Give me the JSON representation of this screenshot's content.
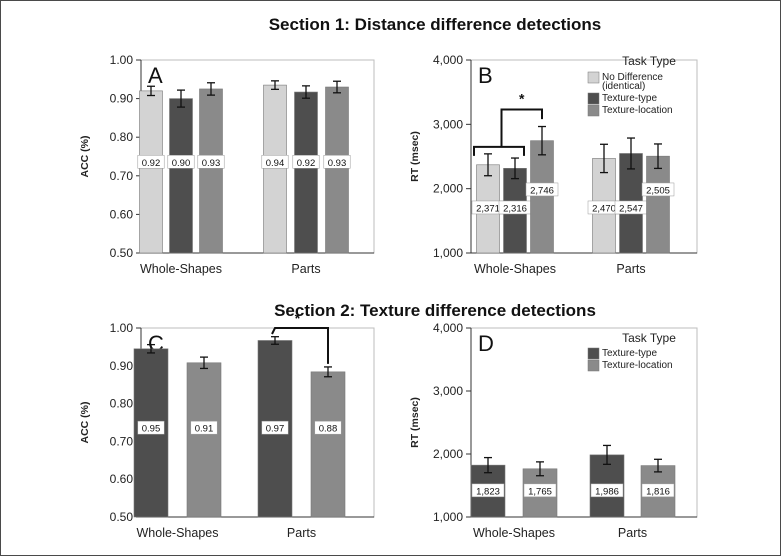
{
  "section_titles": {
    "section1": "Section 1: Distance difference detections",
    "section2": "Section 2: Texture difference detections"
  },
  "colors": {
    "no_difference": "#d3d3d3",
    "texture_type": "#4e4e4e",
    "texture_location": "#8a8a8a",
    "plot_border": "#bdbdbd",
    "axis": "#333333"
  },
  "chart_data": [
    {
      "id": "A",
      "type": "bar",
      "panel_label": "A",
      "ylabel": "ACC (%)",
      "ylim": [
        0.5,
        1.0
      ],
      "yticks": [
        "0.50",
        "0.60",
        "0.70",
        "0.80",
        "0.90",
        "1.00"
      ],
      "ytick_values": [
        0.5,
        0.6,
        0.7,
        0.8,
        0.9,
        1.0
      ],
      "categories": [
        "Whole-Shapes",
        "Parts"
      ],
      "series": [
        {
          "name": "No Difference (identical)",
          "color_key": "no_difference",
          "values": [
            0.92,
            0.935
          ],
          "err": [
            0.012,
            0.011
          ],
          "labels": [
            "0.92",
            "0.94"
          ]
        },
        {
          "name": "Texture-type",
          "color_key": "texture_type",
          "values": [
            0.9,
            0.917
          ],
          "err": [
            0.022,
            0.016
          ],
          "labels": [
            "0.90",
            "0.92"
          ]
        },
        {
          "name": "Texture-location",
          "color_key": "texture_location",
          "values": [
            0.925,
            0.93
          ],
          "err": [
            0.016,
            0.015
          ],
          "labels": [
            "0.93",
            "0.93"
          ]
        }
      ],
      "label_value": 0.735
    },
    {
      "id": "B",
      "type": "bar",
      "panel_label": "B",
      "ylabel": "RT (msec)",
      "ylim": [
        1000,
        4000
      ],
      "yticks": [
        "1,000",
        "2,000",
        "3,000",
        "4,000"
      ],
      "ytick_values": [
        1000,
        2000,
        3000,
        4000
      ],
      "categories": [
        "Whole-Shapes",
        "Parts"
      ],
      "legend_title": "Task Type",
      "legend": [
        {
          "line1": "No Difference",
          "line2": "(identical)",
          "color_key": "no_difference"
        },
        {
          "line1": "Texture-type",
          "line2": "",
          "color_key": "texture_type"
        },
        {
          "line1": "Texture-location",
          "line2": "",
          "color_key": "texture_location"
        }
      ],
      "series": [
        {
          "name": "No Difference (identical)",
          "color_key": "no_difference",
          "values": [
            2371,
            2470
          ],
          "err": [
            170,
            220
          ],
          "labels": [
            "2,371",
            "2,470"
          ]
        },
        {
          "name": "Texture-type",
          "color_key": "texture_type",
          "values": [
            2316,
            2547
          ],
          "err": [
            160,
            240
          ],
          "labels": [
            "2,316",
            "2,547"
          ]
        },
        {
          "name": "Texture-location",
          "color_key": "texture_location",
          "values": [
            2746,
            2505
          ],
          "err": [
            220,
            190
          ],
          "labels": [
            "2,746",
            "2,505"
          ]
        }
      ],
      "label_values": [
        1700,
        1700,
        1980
      ],
      "significance": "*"
    },
    {
      "id": "C",
      "type": "bar",
      "panel_label": "C",
      "ylabel": "ACC (%)",
      "ylim": [
        0.5,
        1.0
      ],
      "yticks": [
        "0.50",
        "0.60",
        "0.70",
        "0.80",
        "0.90",
        "1.00"
      ],
      "ytick_values": [
        0.5,
        0.6,
        0.7,
        0.8,
        0.9,
        1.0
      ],
      "categories": [
        "Whole-Shapes",
        "Parts"
      ],
      "series": [
        {
          "name": "Texture-type",
          "color_key": "texture_type",
          "values": [
            0.945,
            0.967
          ],
          "err": [
            0.011,
            0.01
          ],
          "labels": [
            "0.95",
            "0.97"
          ]
        },
        {
          "name": "Texture-location",
          "color_key": "texture_location",
          "values": [
            0.908,
            0.884
          ],
          "err": [
            0.015,
            0.013
          ],
          "labels": [
            "0.91",
            "0.88"
          ]
        }
      ],
      "label_value": 0.735,
      "significance": "*"
    },
    {
      "id": "D",
      "type": "bar",
      "panel_label": "D",
      "ylabel": "RT (msec)",
      "ylim": [
        1000,
        4000
      ],
      "yticks": [
        "1,000",
        "2,000",
        "3,000",
        "4,000"
      ],
      "ytick_values": [
        1000,
        2000,
        3000,
        4000
      ],
      "categories": [
        "Whole-Shapes",
        "Parts"
      ],
      "legend_title": "Task Type",
      "legend": [
        {
          "line1": "Texture-type",
          "line2": "",
          "color_key": "texture_type"
        },
        {
          "line1": "Texture-location",
          "line2": "",
          "color_key": "texture_location"
        }
      ],
      "series": [
        {
          "name": "Texture-type",
          "color_key": "texture_type",
          "values": [
            1823,
            1986
          ],
          "err": [
            120,
            150
          ],
          "labels": [
            "1,823",
            "1,986"
          ]
        },
        {
          "name": "Texture-location",
          "color_key": "texture_location",
          "values": [
            1765,
            1816
          ],
          "err": [
            110,
            100
          ],
          "labels": [
            "1,765",
            "1,816"
          ]
        }
      ],
      "label_value": 1415
    }
  ]
}
